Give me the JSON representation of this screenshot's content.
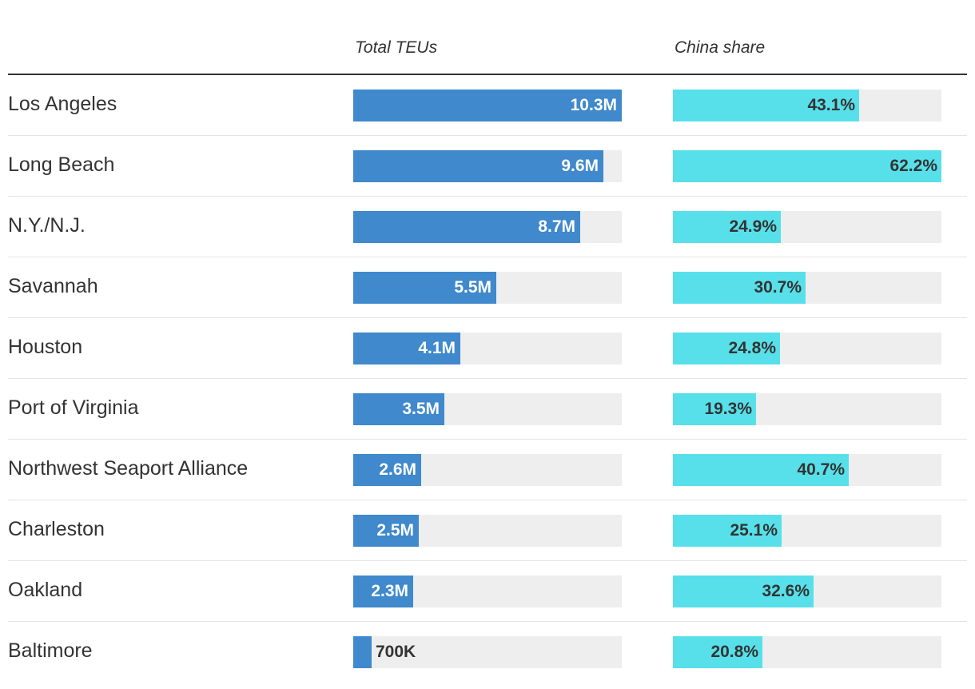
{
  "header": {
    "col_total": "Total TEUs",
    "col_china": "China share"
  },
  "colors": {
    "teu_bar": "#3f89cc",
    "china_bar": "#57e0ea",
    "track": "#eeeeee"
  },
  "chart_data": {
    "type": "bar",
    "categories": [
      "Los Angeles",
      "Long Beach",
      "N.Y./N.J.",
      "Savannah",
      "Houston",
      "Port of Virginia",
      "Northwest Seaport Alliance",
      "Charleston",
      "Oakland",
      "Baltimore"
    ],
    "series": [
      {
        "name": "Total TEUs",
        "values": [
          10.3,
          9.6,
          8.7,
          5.5,
          4.1,
          3.5,
          2.6,
          2.5,
          2.3,
          0.7
        ],
        "labels": [
          "10.3M",
          "9.6M",
          "8.7M",
          "5.5M",
          "4.1M",
          "3.5M",
          "2.6M",
          "2.5M",
          "2.3M",
          "700K"
        ],
        "max": 10.3
      },
      {
        "name": "China share",
        "values": [
          43.1,
          62.2,
          24.9,
          30.7,
          24.8,
          19.3,
          40.7,
          25.1,
          32.6,
          20.8
        ],
        "labels": [
          "43.1%",
          "62.2%",
          "24.9%",
          "30.7%",
          "24.8%",
          "19.3%",
          "40.7%",
          "25.1%",
          "32.6%",
          "20.8%"
        ],
        "max": 62.2
      }
    ],
    "xlabel": "",
    "ylabel": ""
  }
}
